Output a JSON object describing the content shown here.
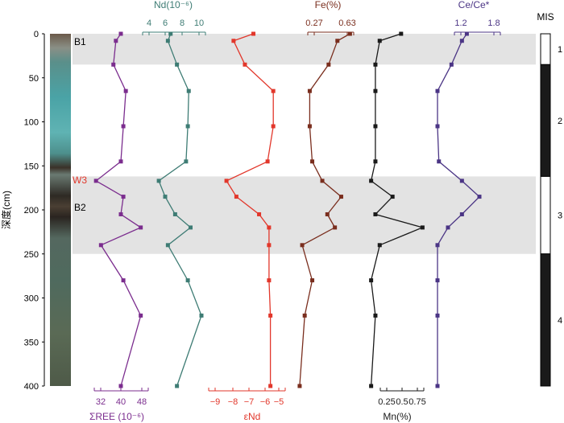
{
  "depth_axis": {
    "label": "深度(cm)",
    "ticks": [
      0,
      50,
      100,
      150,
      200,
      250,
      300,
      350,
      400
    ],
    "range": [
      0,
      400
    ]
  },
  "core_labels": [
    "B1",
    "W3",
    "B2"
  ],
  "mis": {
    "title": "MIS",
    "stages": [
      {
        "label": "1",
        "from": 0,
        "to": 35,
        "fill": "white"
      },
      {
        "label": "2",
        "from": 35,
        "to": 162,
        "fill": "black"
      },
      {
        "label": "3",
        "from": 162,
        "to": 250,
        "fill": "white"
      },
      {
        "label": "4",
        "from": 250,
        "to": 400,
        "fill": "black"
      }
    ]
  },
  "chart_data": {
    "type": "line",
    "y_axis": {
      "label": "深度(cm)",
      "range": [
        0,
        400
      ],
      "inverted": true
    },
    "shaded_intervals": [
      [
        0,
        35
      ],
      [
        162,
        250
      ]
    ],
    "depths": [
      0,
      8,
      35,
      65,
      105,
      145,
      167,
      185,
      205,
      220,
      240,
      280,
      320,
      400
    ],
    "series": [
      {
        "name": "ΣREE (10⁻⁶)",
        "axis_position": "bottom",
        "color": "#7b2d8e",
        "ticks": [
          32,
          40,
          48
        ],
        "range": [
          28,
          52
        ],
        "values": [
          40,
          38,
          37,
          42,
          41,
          40,
          30,
          41,
          40,
          48,
          32,
          41,
          48,
          40
        ]
      },
      {
        "name": "Nd(10⁻⁶)",
        "axis_position": "top",
        "color": "#3e7c74",
        "ticks": [
          4,
          6,
          8,
          10
        ],
        "range": [
          3,
          11
        ],
        "values": [
          6.8,
          6.5,
          7.5,
          8.8,
          8.7,
          8.5,
          5.5,
          6.2,
          7.3,
          9.0,
          6.5,
          8.7,
          10.2,
          7.5
        ]
      },
      {
        "name": "ε_Nd",
        "axis_position": "bottom",
        "color": "#e2372b",
        "ticks": [
          -9,
          -8,
          -7,
          -6,
          -5
        ],
        "range": [
          -9.5,
          -4.5
        ],
        "values": [
          -6.8,
          -8.2,
          -7.4,
          -5.4,
          -5.4,
          -5.8,
          -8.7,
          -8.0,
          -6.4,
          -5.7,
          -5.7,
          -5.7,
          -5.6,
          -5.6
        ]
      },
      {
        "name": "Fe(%)",
        "axis_position": "top",
        "color": "#7a2e1e",
        "ticks": [
          0.27,
          0.63
        ],
        "range": [
          0.15,
          0.72
        ],
        "values": [
          0.62,
          0.52,
          0.45,
          0.3,
          0.3,
          0.32,
          0.4,
          0.55,
          0.44,
          0.5,
          0.24,
          0.32,
          0.26,
          0.22
        ]
      },
      {
        "name": "Mn(%)",
        "axis_position": "bottom",
        "color": "#1a1a1a",
        "ticks": [
          0.25,
          0.5,
          0.75
        ],
        "range": [
          0.05,
          0.85
        ],
        "values": [
          0.5,
          0.25,
          0.2,
          0.2,
          0.2,
          0.2,
          0.15,
          0.4,
          0.2,
          0.75,
          0.25,
          0.15,
          0.2,
          0.15
        ]
      },
      {
        "name": "Ce/Ce*",
        "axis_position": "top",
        "color": "#4b3585",
        "ticks": [
          1.2,
          1.8
        ],
        "range": [
          0.9,
          2.1
        ],
        "values": [
          1.62,
          1.55,
          1.4,
          1.2,
          1.2,
          1.22,
          1.55,
          1.8,
          1.55,
          1.35,
          1.2,
          1.2,
          1.2,
          1.2
        ]
      }
    ],
    "axis_titles": {
      "nd": "Nd(10⁻⁶)",
      "fe": "Fe(%)",
      "ce": "Ce/Ce*",
      "ree": "ΣREE (10⁻⁶)",
      "end": "εNd",
      "mn": "Mn(%)"
    },
    "tick_labels": {
      "nd": [
        "4",
        "6",
        "8",
        "10"
      ],
      "fe": [
        "0.27",
        "0.63"
      ],
      "ce": [
        "1.2",
        "1.8"
      ],
      "ree": [
        "32",
        "40",
        "48"
      ],
      "end": [
        "−9",
        "−8",
        "−7",
        "−6",
        "−5"
      ],
      "mn": [
        "0.25",
        "0.5",
        "0.75"
      ]
    }
  }
}
